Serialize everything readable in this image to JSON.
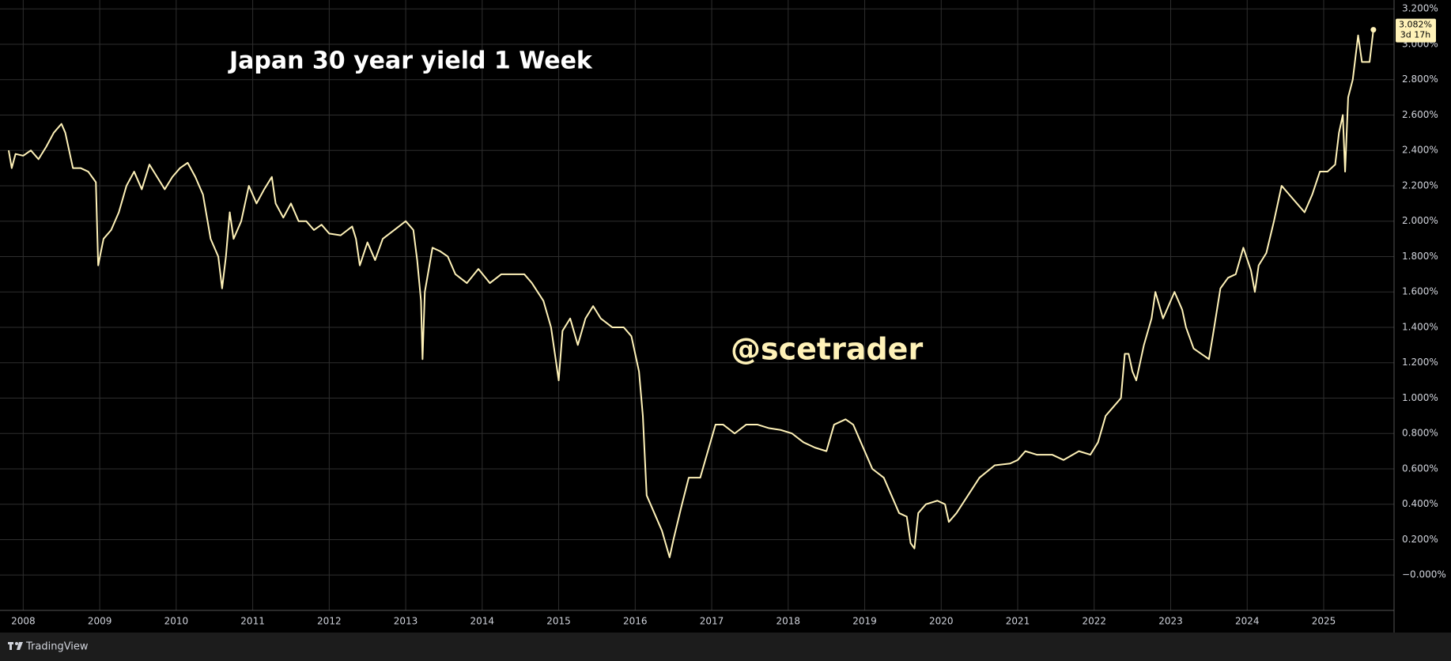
{
  "chart_data": {
    "type": "line",
    "title": "Japan 30 year yield 1 Week",
    "watermark": "@scetrader",
    "brand": "TradingView",
    "color": "#fff2b8",
    "grid": true,
    "xlim": [
      2007.8,
      2025.92
    ],
    "ylim": [
      -0.2,
      3.25
    ],
    "xticks": [
      2008,
      2009,
      2010,
      2011,
      2012,
      2013,
      2014,
      2015,
      2016,
      2017,
      2018,
      2019,
      2020,
      2021,
      2022,
      2023,
      2024,
      2025
    ],
    "yticks": [
      {
        "value": 0,
        "label": "−0.000%"
      },
      {
        "value": 0.2,
        "label": "0.200%"
      },
      {
        "value": 0.4,
        "label": "0.400%"
      },
      {
        "value": 0.6,
        "label": "0.600%"
      },
      {
        "value": 0.8,
        "label": "0.800%"
      },
      {
        "value": 1.0,
        "label": "1.000%"
      },
      {
        "value": 1.2,
        "label": "1.200%"
      },
      {
        "value": 1.4,
        "label": "1.400%"
      },
      {
        "value": 1.6,
        "label": "1.600%"
      },
      {
        "value": 1.8,
        "label": "1.800%"
      },
      {
        "value": 2.0,
        "label": "2.000%"
      },
      {
        "value": 2.2,
        "label": "2.200%"
      },
      {
        "value": 2.4,
        "label": "2.400%"
      },
      {
        "value": 2.6,
        "label": "2.600%"
      },
      {
        "value": 2.8,
        "label": "2.800%"
      },
      {
        "value": 3.0,
        "label": "3.000%"
      },
      {
        "value": 3.2,
        "label": "3.200%"
      }
    ],
    "last_price": {
      "value": 3.082,
      "label": "3.082%"
    },
    "countdown": "3d 17h",
    "x": [
      2007.81,
      2007.85,
      2007.9,
      2008.0,
      2008.1,
      2008.2,
      2008.3,
      2008.4,
      2008.5,
      2008.55,
      2008.65,
      2008.75,
      2008.85,
      2008.95,
      2008.98,
      2009.05,
      2009.15,
      2009.25,
      2009.35,
      2009.45,
      2009.55,
      2009.65,
      2009.75,
      2009.85,
      2009.95,
      2010.05,
      2010.15,
      2010.25,
      2010.35,
      2010.45,
      2010.55,
      2010.6,
      2010.65,
      2010.7,
      2010.75,
      2010.85,
      2010.95,
      2011.05,
      2011.15,
      2011.25,
      2011.3,
      2011.4,
      2011.5,
      2011.6,
      2011.7,
      2011.8,
      2011.9,
      2012.0,
      2012.15,
      2012.3,
      2012.35,
      2012.4,
      2012.5,
      2012.6,
      2012.7,
      2012.85,
      2013.0,
      2013.1,
      2013.15,
      2013.2,
      2013.22,
      2013.25,
      2013.35,
      2013.45,
      2013.55,
      2013.65,
      2013.8,
      2013.95,
      2014.1,
      2014.25,
      2014.4,
      2014.55,
      2014.65,
      2014.8,
      2014.9,
      2014.95,
      2015.0,
      2015.05,
      2015.15,
      2015.25,
      2015.35,
      2015.45,
      2015.55,
      2015.7,
      2015.85,
      2015.95,
      2016.05,
      2016.1,
      2016.15,
      2016.25,
      2016.35,
      2016.45,
      2016.5,
      2016.6,
      2016.7,
      2016.85,
      2016.95,
      2017.05,
      2017.15,
      2017.3,
      2017.45,
      2017.6,
      2017.75,
      2017.9,
      2018.05,
      2018.2,
      2018.35,
      2018.5,
      2018.6,
      2018.75,
      2018.85,
      2018.95,
      2019.1,
      2019.25,
      2019.35,
      2019.45,
      2019.55,
      2019.6,
      2019.65,
      2019.7,
      2019.8,
      2019.95,
      2020.05,
      2020.1,
      2020.2,
      2020.35,
      2020.5,
      2020.7,
      2020.9,
      2021.0,
      2021.1,
      2021.25,
      2021.45,
      2021.6,
      2021.8,
      2021.95,
      2022.05,
      2022.15,
      2022.25,
      2022.35,
      2022.4,
      2022.45,
      2022.5,
      2022.55,
      2022.65,
      2022.75,
      2022.8,
      2022.9,
      2023.0,
      2023.05,
      2023.15,
      2023.2,
      2023.3,
      2023.4,
      2023.5,
      2023.55,
      2023.65,
      2023.75,
      2023.85,
      2023.95,
      2024.05,
      2024.1,
      2024.15,
      2024.25,
      2024.35,
      2024.45,
      2024.55,
      2024.65,
      2024.75,
      2024.85,
      2024.95,
      2025.05,
      2025.15,
      2025.2,
      2025.25,
      2025.28,
      2025.32,
      2025.38,
      2025.45,
      2025.5,
      2025.6,
      2025.65
    ],
    "values": [
      2.4,
      2.3,
      2.38,
      2.37,
      2.4,
      2.35,
      2.42,
      2.5,
      2.55,
      2.5,
      2.3,
      2.3,
      2.28,
      2.22,
      1.75,
      1.9,
      1.95,
      2.05,
      2.2,
      2.28,
      2.18,
      2.32,
      2.25,
      2.18,
      2.25,
      2.3,
      2.33,
      2.25,
      2.15,
      1.9,
      1.8,
      1.62,
      1.8,
      2.05,
      1.9,
      2.0,
      2.2,
      2.1,
      2.18,
      2.25,
      2.1,
      2.02,
      2.1,
      2.0,
      2.0,
      1.95,
      1.98,
      1.93,
      1.92,
      1.97,
      1.9,
      1.75,
      1.88,
      1.78,
      1.9,
      1.95,
      2.0,
      1.95,
      1.78,
      1.55,
      1.22,
      1.6,
      1.85,
      1.83,
      1.8,
      1.7,
      1.65,
      1.73,
      1.65,
      1.7,
      1.7,
      1.7,
      1.65,
      1.55,
      1.4,
      1.25,
      1.1,
      1.38,
      1.45,
      1.3,
      1.45,
      1.52,
      1.45,
      1.4,
      1.4,
      1.35,
      1.15,
      0.9,
      0.45,
      0.35,
      0.25,
      0.1,
      0.2,
      0.38,
      0.55,
      0.55,
      0.7,
      0.85,
      0.85,
      0.8,
      0.85,
      0.85,
      0.83,
      0.82,
      0.8,
      0.75,
      0.72,
      0.7,
      0.85,
      0.88,
      0.85,
      0.75,
      0.6,
      0.55,
      0.45,
      0.35,
      0.33,
      0.18,
      0.15,
      0.35,
      0.4,
      0.42,
      0.4,
      0.3,
      0.35,
      0.45,
      0.55,
      0.62,
      0.63,
      0.65,
      0.7,
      0.68,
      0.68,
      0.65,
      0.7,
      0.68,
      0.75,
      0.9,
      0.95,
      1.0,
      1.25,
      1.25,
      1.15,
      1.1,
      1.3,
      1.45,
      1.6,
      1.45,
      1.55,
      1.6,
      1.5,
      1.4,
      1.28,
      1.25,
      1.22,
      1.35,
      1.62,
      1.68,
      1.7,
      1.85,
      1.72,
      1.6,
      1.75,
      1.82,
      2.0,
      2.2,
      2.15,
      2.1,
      2.05,
      2.15,
      2.28,
      2.28,
      2.32,
      2.5,
      2.6,
      2.28,
      2.7,
      2.8,
      3.05,
      2.9,
      2.9,
      3.082
    ]
  }
}
